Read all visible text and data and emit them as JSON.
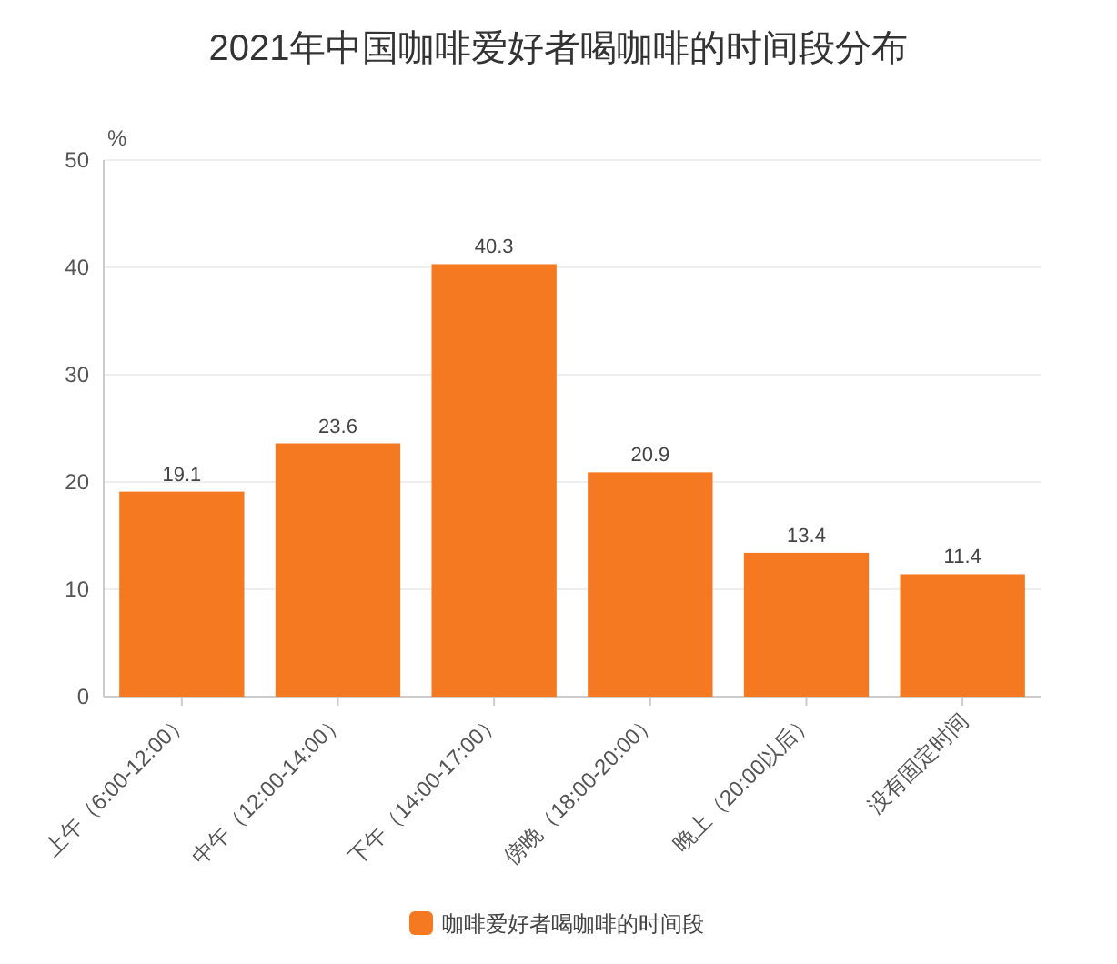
{
  "chart_data": {
    "type": "bar",
    "title": "2021年中国咖啡爱好者喝咖啡的时间段分布",
    "ylabel": "%",
    "categories": [
      "上午（6:00-12:00）",
      "中午（12:00-14:00）",
      "下午（14:00-17:00）",
      "傍晚（18:00-20:00）",
      "晚上（20:00以后）",
      "没有固定时间"
    ],
    "series": [
      {
        "name": "咖啡爱好者喝咖啡的时间段",
        "color": "#f47920",
        "values": [
          19.1,
          23.6,
          40.3,
          20.9,
          13.4,
          11.4
        ]
      }
    ],
    "ylim": [
      0,
      50
    ],
    "yticks": [
      0,
      10,
      20,
      30,
      40,
      50
    ],
    "grid": "y",
    "legend": "bottom",
    "data_labels": true
  }
}
